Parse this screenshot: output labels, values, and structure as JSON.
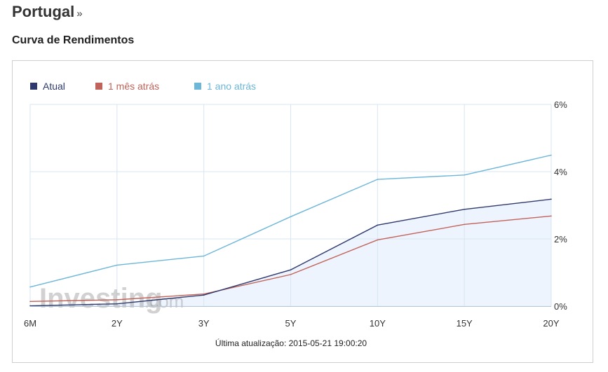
{
  "header": {
    "title": "Portugal",
    "raquo": "»"
  },
  "section": {
    "title": "Curva de Rendimentos"
  },
  "chart_data": {
    "type": "line",
    "categories": [
      "6M",
      "2Y",
      "3Y",
      "5Y",
      "10Y",
      "15Y",
      "20Y"
    ],
    "series": [
      {
        "name": "Atual",
        "color": "#2e3a6e",
        "values": [
          0.01,
          0.07,
          0.33,
          1.08,
          2.41,
          2.88,
          3.18
        ]
      },
      {
        "name": "1 mês atrás",
        "color": "#c0635a",
        "values": [
          0.14,
          0.19,
          0.36,
          0.94,
          1.97,
          2.43,
          2.68
        ]
      },
      {
        "name": "1 ano atrás",
        "color": "#6cb6d9",
        "values": [
          0.57,
          1.22,
          1.49,
          2.66,
          3.77,
          3.9,
          4.49
        ]
      }
    ],
    "ylim": [
      0,
      6
    ],
    "yticks": [
      0,
      2,
      4,
      6
    ],
    "ytick_labels": [
      "0%",
      "2%",
      "4%",
      "6%"
    ],
    "grid": true,
    "legend_position": "top-left",
    "area_fill_series": "Atual",
    "area_fill_color": "#eef4fd"
  },
  "watermark": {
    "main": "Investing",
    "suffix": ".com"
  },
  "footer": {
    "last_update": "Última atualização: 2015-05-21 19:00:20"
  }
}
